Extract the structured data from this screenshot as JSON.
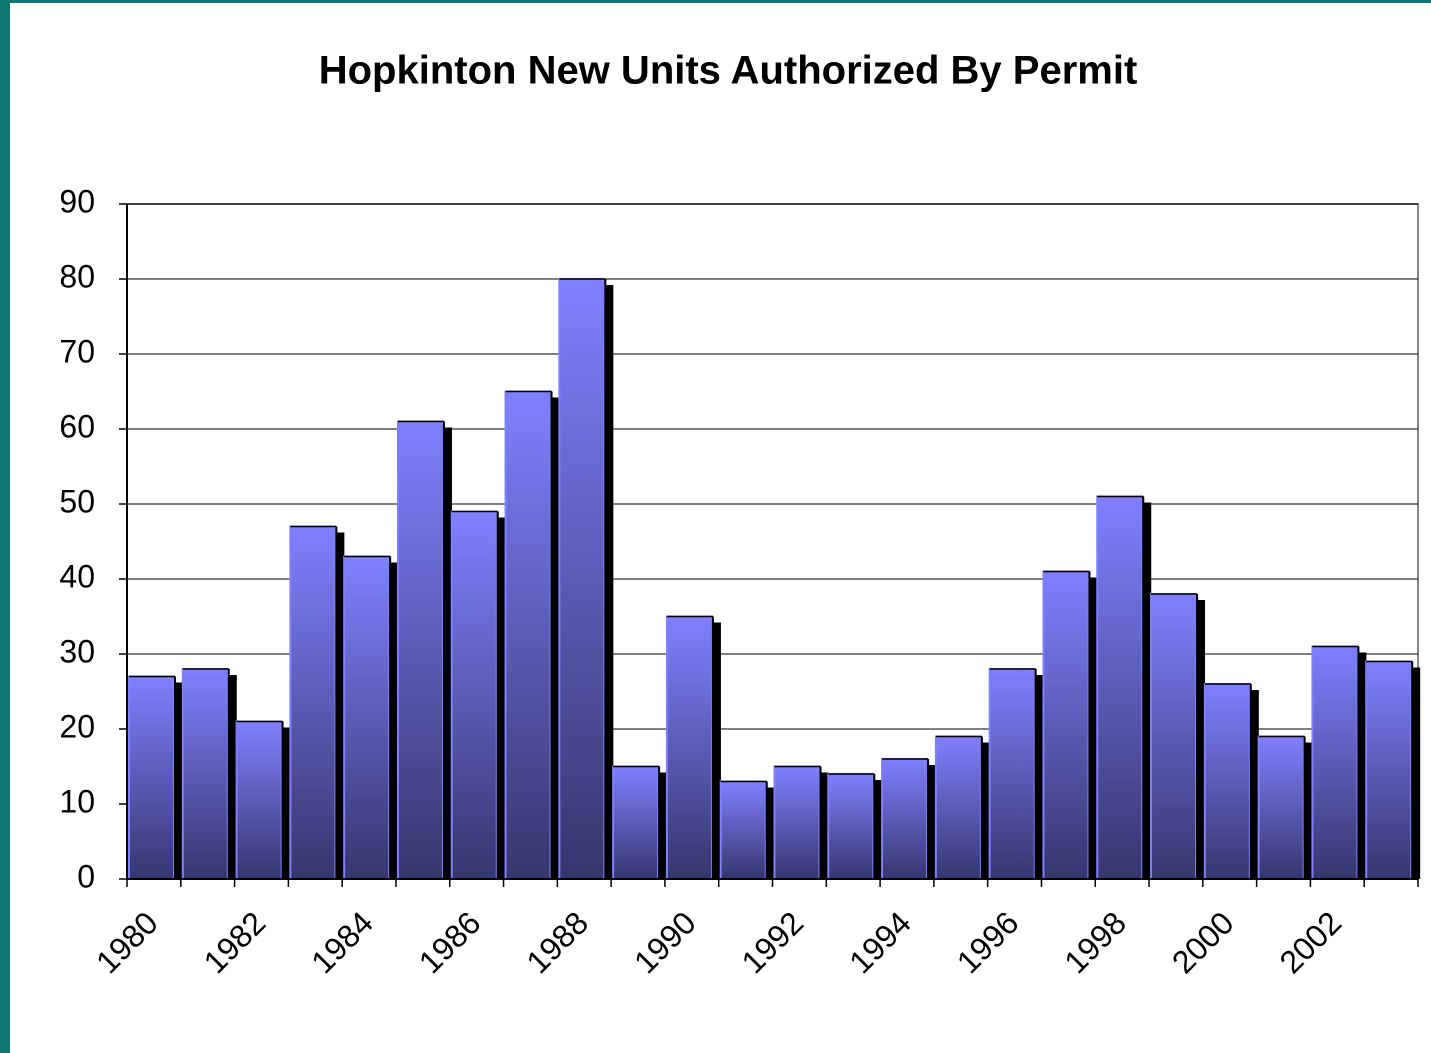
{
  "chart_data": {
    "type": "bar",
    "title": "Hopkinton New Units Authorized By Permit",
    "categories": [
      "1980",
      null,
      "1982",
      null,
      "1984",
      null,
      "1986",
      null,
      "1988",
      null,
      "1990",
      null,
      "1992",
      null,
      "1994",
      null,
      "1996",
      null,
      "1998",
      null,
      "2000",
      null,
      "2002",
      null
    ],
    "values": [
      27,
      28,
      21,
      47,
      43,
      61,
      49,
      65,
      80,
      15,
      35,
      13,
      15,
      14,
      16,
      19,
      28,
      41,
      51,
      38,
      26,
      19,
      31,
      29
    ],
    "color": "#7f7fff",
    "ylim": [
      0,
      90
    ],
    "yticks": [
      0,
      10,
      20,
      30,
      40,
      50,
      60,
      70,
      80,
      90
    ],
    "grid": true
  }
}
